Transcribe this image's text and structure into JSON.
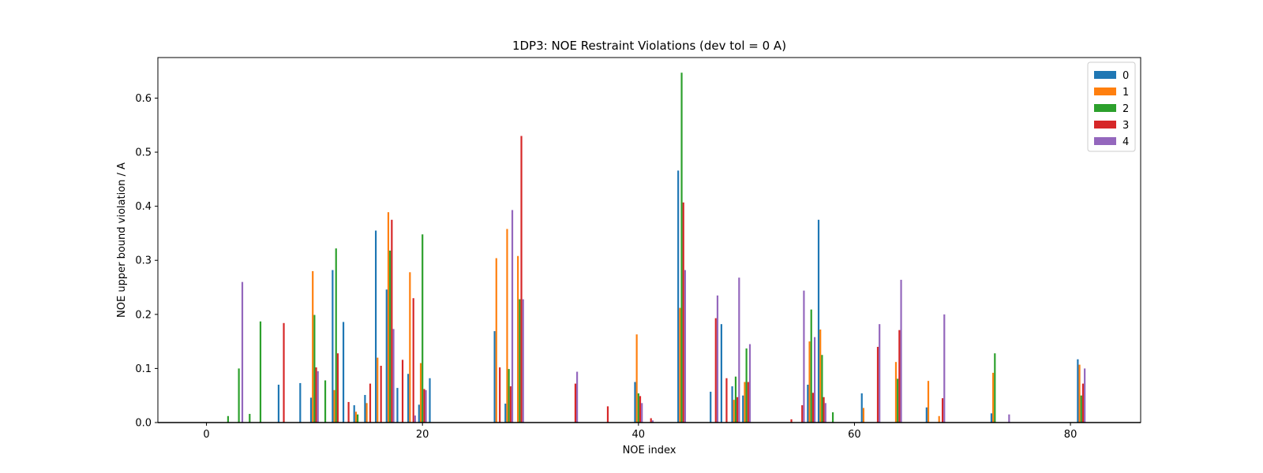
{
  "chart_data": {
    "type": "bar",
    "title": "1DP3: NOE Restraint Violations (dev tol = 0 A)",
    "xlabel": "NOE index",
    "ylabel": "NOE upper bound violation / A",
    "xlim": [
      -4.5,
      86.5
    ],
    "ylim": [
      0,
      0.675
    ],
    "xticks": [
      0,
      20,
      40,
      60,
      80
    ],
    "yticks": [
      0.0,
      0.1,
      0.2,
      0.3,
      0.4,
      0.5,
      0.6
    ],
    "ytick_labels": [
      "0.0",
      "0.1",
      "0.2",
      "0.3",
      "0.4",
      "0.5",
      "0.6"
    ],
    "legend_position": "upper right",
    "colors": [
      "#1f77b4",
      "#ff7f0e",
      "#2ca02c",
      "#d62728",
      "#9467bd"
    ],
    "series": [
      {
        "name": "0",
        "points": [
          [
            7,
            0.07
          ],
          [
            9,
            0.073
          ],
          [
            10,
            0.046
          ],
          [
            12,
            0.282
          ],
          [
            13,
            0.186
          ],
          [
            14,
            0.032
          ],
          [
            15,
            0.051
          ],
          [
            16,
            0.355
          ],
          [
            17,
            0.246
          ],
          [
            18,
            0.064
          ],
          [
            19,
            0.09
          ],
          [
            20,
            0.033
          ],
          [
            21,
            0.082
          ],
          [
            27,
            0.169
          ],
          [
            28,
            0.035
          ],
          [
            40,
            0.075
          ],
          [
            44,
            0.466
          ],
          [
            47,
            0.057
          ],
          [
            48,
            0.182
          ],
          [
            49,
            0.067
          ],
          [
            50,
            0.05
          ],
          [
            56,
            0.07
          ],
          [
            57,
            0.375
          ],
          [
            61,
            0.054
          ],
          [
            67,
            0.028
          ],
          [
            73,
            0.017
          ],
          [
            81,
            0.117
          ]
        ]
      },
      {
        "name": "1",
        "points": [
          [
            10,
            0.28
          ],
          [
            12,
            0.06
          ],
          [
            14,
            0.02
          ],
          [
            15,
            0.036
          ],
          [
            16,
            0.12
          ],
          [
            17,
            0.389
          ],
          [
            19,
            0.278
          ],
          [
            20,
            0.11
          ],
          [
            27,
            0.304
          ],
          [
            28,
            0.358
          ],
          [
            29,
            0.308
          ],
          [
            40,
            0.163
          ],
          [
            44,
            0.212
          ],
          [
            49,
            0.042
          ],
          [
            50,
            0.075
          ],
          [
            56,
            0.15
          ],
          [
            57,
            0.172
          ],
          [
            61,
            0.027
          ],
          [
            64,
            0.112
          ],
          [
            67,
            0.077
          ],
          [
            68,
            0.012
          ],
          [
            73,
            0.092
          ],
          [
            81,
            0.107
          ]
        ]
      },
      {
        "name": "2",
        "points": [
          [
            2,
            0.012
          ],
          [
            3,
            0.1
          ],
          [
            4,
            0.016
          ],
          [
            5,
            0.187
          ],
          [
            10,
            0.199
          ],
          [
            11,
            0.078
          ],
          [
            12,
            0.322
          ],
          [
            14,
            0.015
          ],
          [
            17,
            0.318
          ],
          [
            20,
            0.348
          ],
          [
            28,
            0.099
          ],
          [
            29,
            0.228
          ],
          [
            40,
            0.054
          ],
          [
            44,
            0.647
          ],
          [
            49,
            0.085
          ],
          [
            50,
            0.137
          ],
          [
            56,
            0.209
          ],
          [
            57,
            0.125
          ],
          [
            58,
            0.019
          ],
          [
            64,
            0.081
          ],
          [
            73,
            0.128
          ],
          [
            81,
            0.05
          ]
        ]
      },
      {
        "name": "3",
        "points": [
          [
            7,
            0.184
          ],
          [
            10,
            0.102
          ],
          [
            12,
            0.128
          ],
          [
            13,
            0.038
          ],
          [
            15,
            0.072
          ],
          [
            16,
            0.105
          ],
          [
            17,
            0.375
          ],
          [
            18,
            0.116
          ],
          [
            19,
            0.23
          ],
          [
            20,
            0.062
          ],
          [
            27,
            0.102
          ],
          [
            28,
            0.067
          ],
          [
            29,
            0.53
          ],
          [
            34,
            0.072
          ],
          [
            37,
            0.03
          ],
          [
            40,
            0.049
          ],
          [
            41,
            0.008
          ],
          [
            44,
            0.407
          ],
          [
            47,
            0.193
          ],
          [
            48,
            0.082
          ],
          [
            49,
            0.047
          ],
          [
            50,
            0.075
          ],
          [
            54,
            0.006
          ],
          [
            55,
            0.032
          ],
          [
            56,
            0.055
          ],
          [
            57,
            0.047
          ],
          [
            62,
            0.14
          ],
          [
            64,
            0.171
          ],
          [
            68,
            0.045
          ],
          [
            81,
            0.072
          ]
        ]
      },
      {
        "name": "4",
        "points": [
          [
            3,
            0.26
          ],
          [
            10,
            0.095
          ],
          [
            17,
            0.173
          ],
          [
            19,
            0.013
          ],
          [
            20,
            0.06
          ],
          [
            28,
            0.393
          ],
          [
            29,
            0.228
          ],
          [
            34,
            0.094
          ],
          [
            40,
            0.036
          ],
          [
            41,
            0.004
          ],
          [
            44,
            0.282
          ],
          [
            47,
            0.235
          ],
          [
            49,
            0.268
          ],
          [
            50,
            0.145
          ],
          [
            55,
            0.244
          ],
          [
            56,
            0.158
          ],
          [
            57,
            0.036
          ],
          [
            62,
            0.182
          ],
          [
            64,
            0.264
          ],
          [
            68,
            0.2
          ],
          [
            74,
            0.015
          ],
          [
            81,
            0.1
          ]
        ]
      }
    ]
  }
}
